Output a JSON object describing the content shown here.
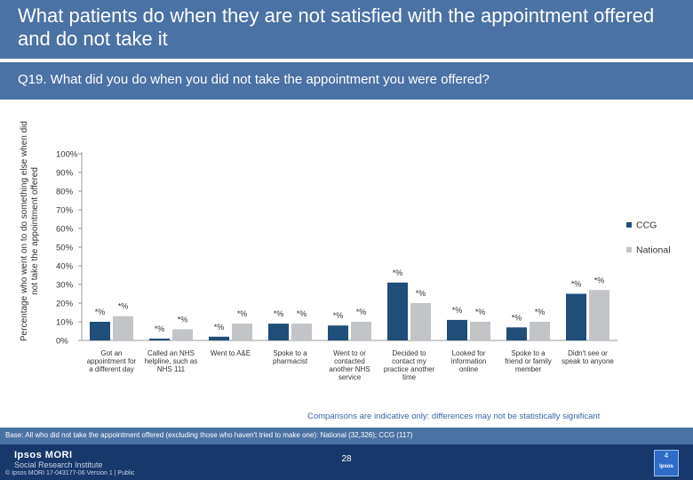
{
  "header": {
    "title": "What patients do when they are not satisfied with the appointment offered and do not take it",
    "question": "Q19. What did you do when you did not take the appointment you were offered?"
  },
  "chart_data": {
    "type": "bar",
    "ylabel": "Percentage who went on to do something else when did not take the appointment offered",
    "ylim": [
      0,
      100
    ],
    "yticks": [
      "0%",
      "10%",
      "20%",
      "30%",
      "40%",
      "50%",
      "60%",
      "70%",
      "80%",
      "90%",
      "100%"
    ],
    "categories": [
      [
        "Got an",
        "appointment for",
        "a different day"
      ],
      [
        "Called an NHS",
        "helpline, such as",
        "NHS 111"
      ],
      [
        "Went to A&E"
      ],
      [
        "Spoke to a",
        "pharmacist"
      ],
      [
        "Went to or",
        "contacted",
        "another NHS",
        "service"
      ],
      [
        "Decided to",
        "contact my",
        "practice another",
        "time"
      ],
      [
        "Looked for",
        "information",
        "online"
      ],
      [
        "Spoke to a",
        "friend or family",
        "member"
      ],
      [
        "Didn't see or",
        "speak to anyone"
      ]
    ],
    "series": [
      {
        "name": "CCG",
        "color": "#1f4e79",
        "values": [
          10,
          1,
          2,
          9,
          8,
          31,
          11,
          7,
          25
        ],
        "labels": [
          "*%",
          "*%",
          "*%",
          "*%",
          "*%",
          "*%",
          "*%",
          "*%",
          "*%"
        ]
      },
      {
        "name": "National",
        "color": "#c2c4c7",
        "values": [
          13,
          6,
          9,
          9,
          10,
          20,
          10,
          10,
          27
        ],
        "labels": [
          "*%",
          "*%",
          "*%",
          "*%",
          "*%",
          "*%",
          "*%",
          "*%",
          "*%"
        ]
      }
    ],
    "legend_position": "right"
  },
  "note": "Comparisons are indicative only: differences may not be statistically significant",
  "base": "Base: All who did not take the appointment offered (excluding those who haven't tried to make one): National (32,326); CCG (117)",
  "footer": {
    "logo_main": "Ipsos MORI",
    "logo_sub": "Social Research Institute",
    "copyright": "© Ipsos MORI    17-043177-06 Version 1 | Public",
    "page": "28",
    "badge_num": "4",
    "badge_word": "Ipsos"
  }
}
